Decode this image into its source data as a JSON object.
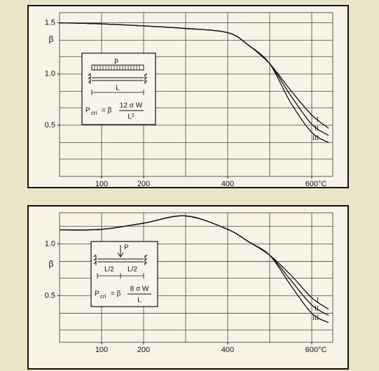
{
  "chart_data": [
    {
      "type": "line",
      "ylabel": "β",
      "xlim": [
        0,
        650
      ],
      "ylim": [
        0,
        1.6
      ],
      "xticks": [
        100,
        200,
        400,
        {
          "value": 600,
          "label": "600°C"
        }
      ],
      "yticks": [
        0.5,
        {
          "value": 1,
          "label": "1.0"
        },
        1.5
      ],
      "xgrid": [
        100,
        200,
        300,
        400,
        500,
        600
      ],
      "ygrid": [
        0.17,
        0.33,
        0.5,
        0.67,
        0.83,
        1,
        1.17,
        1.33,
        1.5
      ],
      "x": [
        0,
        100,
        200,
        300,
        400,
        450,
        500,
        550,
        600,
        640
      ],
      "series": [
        {
          "name": "I",
          "color": "#111111",
          "values": [
            1.5,
            1.49,
            1.47,
            1.445,
            1.404,
            1.28,
            1.1,
            0.84,
            0.6,
            0.47
          ]
        },
        {
          "name": "II",
          "color": "#111111",
          "values": [
            1.5,
            1.49,
            1.47,
            1.445,
            1.404,
            1.28,
            1.1,
            0.79,
            0.51,
            0.4
          ]
        },
        {
          "name": "III",
          "color": "#111111",
          "values": [
            1.5,
            1.49,
            1.47,
            1.445,
            1.404,
            1.28,
            1.1,
            0.72,
            0.43,
            0.33
          ]
        }
      ],
      "annotations": {
        "load": "p",
        "span": "L",
        "formula_p": "P",
        "formula_sub": "cri",
        "formula_eq": "= β",
        "numerator": "12 σ W",
        "denominator": "L²"
      }
    },
    {
      "type": "line",
      "ylabel": "β",
      "xlim": [
        0,
        650
      ],
      "ylim": [
        0.05,
        1.3
      ],
      "xticks": [
        100,
        200,
        400,
        {
          "value": 600,
          "label": "600°C"
        }
      ],
      "yticks": [
        0.5,
        {
          "value": 1,
          "label": "1.0"
        }
      ],
      "xgrid": [
        100,
        200,
        300,
        400,
        500,
        600
      ],
      "ygrid": [
        0.17,
        0.33,
        0.5,
        0.67,
        0.83,
        1,
        1.17
      ],
      "x": [
        0,
        100,
        200,
        300,
        400,
        450,
        500,
        550,
        600,
        640
      ],
      "series": [
        {
          "name": "I",
          "color": "#111111",
          "values": [
            1.135,
            1.14,
            1.2,
            1.27,
            1.14,
            1.02,
            0.89,
            0.7,
            0.48,
            0.37
          ]
        },
        {
          "name": "II",
          "color": "#111111",
          "values": [
            1.135,
            1.14,
            1.2,
            1.27,
            1.14,
            1.02,
            0.89,
            0.65,
            0.41,
            0.31
          ]
        },
        {
          "name": "III",
          "color": "#111111",
          "values": [
            1.135,
            1.14,
            1.2,
            1.27,
            1.14,
            1.02,
            0.89,
            0.6,
            0.33,
            0.24
          ]
        }
      ],
      "annotations": {
        "load": "P",
        "half_left": "L/2",
        "half_right": "L/2",
        "formula_p": "P",
        "formula_sub": "cri",
        "formula_eq": "= β",
        "numerator": "8 σ W",
        "denominator": "L"
      }
    }
  ]
}
